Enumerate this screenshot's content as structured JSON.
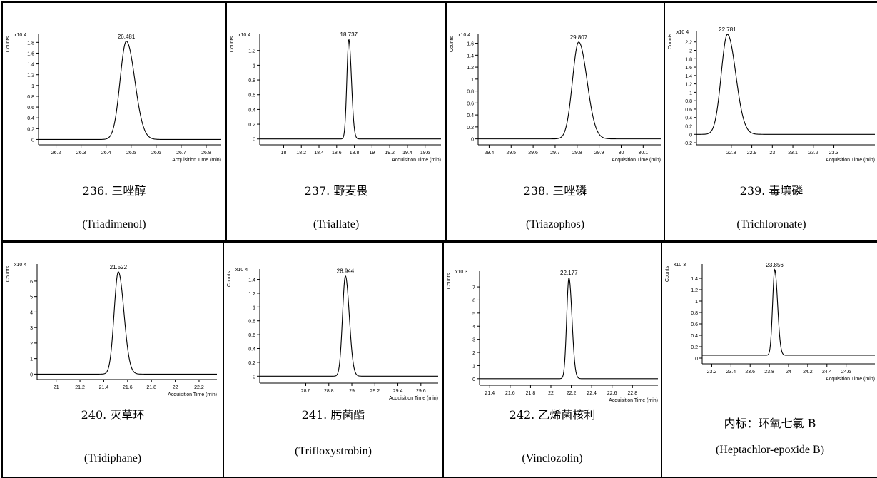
{
  "xaxis_label": "Acquisition Time (min)",
  "yaxis_label": "Counts",
  "chart_data": [
    {
      "type": "line",
      "scale": "x10 4",
      "peak_label": "26.481",
      "peak_x": 26.481,
      "sigma": 0.025,
      "peak_height": 1.82,
      "baseline": 0,
      "xlim": [
        26.13,
        26.86
      ],
      "ylim": [
        -0.1,
        1.95
      ],
      "x_ticks": [
        26.2,
        26.3,
        26.4,
        26.5,
        26.6,
        26.7,
        26.8
      ],
      "y_ticks": [
        0,
        0.2,
        0.4,
        0.6,
        0.8,
        1,
        1.2,
        1.4,
        1.6,
        1.8
      ],
      "x_tick_labels": [
        "26.2",
        "26.3",
        "26.4",
        "26.5",
        "26.6",
        "26.7",
        "26.8"
      ],
      "y_tick_labels": [
        "0",
        "0.2",
        "0.4",
        "0.6",
        "0.8",
        "1",
        "1.2",
        "1.4",
        "1.6",
        "1.8"
      ],
      "cn_label": "236. 三唑醇",
      "en_label": "(Triadimenol)"
    },
    {
      "type": "line",
      "scale": "x10 4",
      "peak_label": "18.737",
      "peak_x": 18.737,
      "sigma": 0.022,
      "peak_height": 1.35,
      "baseline": 0,
      "xlim": [
        17.73,
        19.78
      ],
      "ylim": [
        -0.08,
        1.42
      ],
      "x_ticks": [
        18,
        18.2,
        18.4,
        18.6,
        18.8,
        19,
        19.2,
        19.4,
        19.6
      ],
      "y_ticks": [
        0,
        0.2,
        0.4,
        0.6,
        0.8,
        1,
        1.2
      ],
      "x_tick_labels": [
        "18",
        "18.2",
        "18.4",
        "18.6",
        "18.8",
        "19",
        "19.2",
        "19.4",
        "19.6"
      ],
      "y_tick_labels": [
        "0",
        "0.2",
        "0.4",
        "0.6",
        "0.8",
        "1",
        "1.2"
      ],
      "cn_label": "237. 野麦畏",
      "en_label": "(Triallate)"
    },
    {
      "type": "line",
      "scale": "x10 4",
      "peak_label": "29.807",
      "peak_x": 29.807,
      "sigma": 0.028,
      "peak_height": 1.62,
      "baseline": 0,
      "xlim": [
        29.35,
        30.18
      ],
      "ylim": [
        -0.1,
        1.75
      ],
      "x_ticks": [
        29.4,
        29.5,
        29.6,
        29.7,
        29.8,
        29.9,
        30,
        30.1
      ],
      "y_ticks": [
        0,
        0.2,
        0.4,
        0.6,
        0.8,
        1,
        1.2,
        1.4,
        1.6
      ],
      "x_tick_labels": [
        "29.4",
        "29.5",
        "29.6",
        "29.7",
        "29.8",
        "29.9",
        "30",
        "30.1"
      ],
      "y_tick_labels": [
        "0",
        "0.2",
        "0.4",
        "0.6",
        "0.8",
        "1",
        "1.2",
        "1.4",
        "1.6"
      ],
      "cn_label": "238. 三唑磷",
      "en_label": "(Triazophos)"
    },
    {
      "type": "line",
      "scale": "x10 4",
      "peak_label": "22.781",
      "peak_x": 22.781,
      "sigma": 0.03,
      "peak_height": 2.38,
      "baseline": 0,
      "xlim": [
        22.63,
        23.5
      ],
      "ylim": [
        -0.25,
        2.45
      ],
      "x_ticks": [
        22.8,
        22.9,
        23,
        23.1,
        23.2,
        23.3
      ],
      "y_ticks": [
        -0.2,
        0,
        0.2,
        0.4,
        0.6,
        0.8,
        1,
        1.2,
        1.4,
        1.6,
        1.8,
        2,
        2.2
      ],
      "x_tick_labels": [
        "22.8",
        "22.9",
        "23",
        "23.1",
        "23.2",
        "23.3"
      ],
      "y_tick_labels": [
        "-0.2",
        "0",
        "0.2",
        "0.4",
        "0.6",
        "0.8",
        "1",
        "1.2",
        "1.4",
        "1.6",
        "1.8",
        "2",
        "2.2"
      ],
      "cn_label": "239. 毒壤磷",
      "en_label": "(Trichloronate)"
    },
    {
      "type": "line",
      "scale": "x10 4",
      "peak_label": "21.522",
      "peak_x": 21.522,
      "sigma": 0.035,
      "peak_height": 6.6,
      "baseline": 0,
      "xlim": [
        20.84,
        22.35
      ],
      "ylim": [
        -0.35,
        7.1
      ],
      "x_ticks": [
        21,
        21.2,
        21.4,
        21.6,
        21.8,
        22,
        22.2
      ],
      "y_ticks": [
        0,
        1,
        2,
        3,
        4,
        5,
        6
      ],
      "x_tick_labels": [
        "21",
        "21.2",
        "21.4",
        "21.6",
        "21.8",
        "22",
        "22.2"
      ],
      "y_tick_labels": [
        "0",
        "1",
        "2",
        "3",
        "4",
        "5",
        "6"
      ],
      "cn_label": "240.   灭草环",
      "en_label": "(Tridiphane)"
    },
    {
      "type": "line",
      "scale": "x10 4",
      "peak_label": "28.944",
      "peak_x": 28.944,
      "sigma": 0.025,
      "peak_height": 1.45,
      "baseline": 0,
      "xlim": [
        28.2,
        29.75
      ],
      "ylim": [
        -0.1,
        1.55
      ],
      "x_ticks": [
        28.6,
        28.8,
        29,
        29.2,
        29.4,
        29.6
      ],
      "y_ticks": [
        0,
        0.2,
        0.4,
        0.6,
        0.8,
        1,
        1.2,
        1.4
      ],
      "x_tick_labels": [
        "28.6",
        "28.8",
        "29",
        "29.2",
        "29.4",
        "29.6"
      ],
      "y_tick_labels": [
        "0",
        "0.2",
        "0.4",
        "0.6",
        "0.8",
        "1",
        "1.2",
        "1.4"
      ],
      "cn_label": "241. 肟菌酯",
      "en_label": "(Trifloxystrobin)"
    },
    {
      "type": "line",
      "scale": "x10 3",
      "peak_label": "22.177",
      "peak_x": 22.177,
      "sigma": 0.022,
      "peak_height": 7.7,
      "baseline": 0,
      "xlim": [
        21.3,
        23.05
      ],
      "ylim": [
        -0.5,
        8.2
      ],
      "x_ticks": [
        21.4,
        21.6,
        21.8,
        22,
        22.2,
        22.4,
        22.6,
        22.8
      ],
      "y_ticks": [
        0,
        1,
        2,
        3,
        4,
        5,
        6,
        7
      ],
      "x_tick_labels": [
        "21.4",
        "21.6",
        "21.8",
        "22",
        "22.2",
        "22.4",
        "22.6",
        "22.8"
      ],
      "y_tick_labels": [
        "0",
        "1",
        "2",
        "3",
        "4",
        "5",
        "6",
        "7"
      ],
      "cn_label": "242. 乙烯菌核利",
      "en_label": "(Vinclozolin)"
    },
    {
      "type": "line",
      "scale": "x10 3",
      "peak_label": "23.856",
      "peak_x": 23.856,
      "sigma": 0.022,
      "peak_height": 1.5,
      "baseline": 0.05,
      "xlim": [
        23.1,
        24.9
      ],
      "ylim": [
        -0.1,
        1.65
      ],
      "x_ticks": [
        23.2,
        23.4,
        23.6,
        23.8,
        24,
        24.2,
        24.4,
        24.6
      ],
      "y_ticks": [
        0,
        0.2,
        0.4,
        0.6,
        0.8,
        1,
        1.2,
        1.4
      ],
      "x_tick_labels": [
        "23.2",
        "23.4",
        "23.6",
        "23.8",
        "24",
        "24.2",
        "24.4",
        "24.6"
      ],
      "y_tick_labels": [
        "0",
        "0.2",
        "0.4",
        "0.6",
        "0.8",
        "1",
        "1.2",
        "1.4"
      ],
      "cn_label": "内标：环氧七氯 B",
      "en_label": "(Heptachlor-epoxide B)"
    }
  ]
}
